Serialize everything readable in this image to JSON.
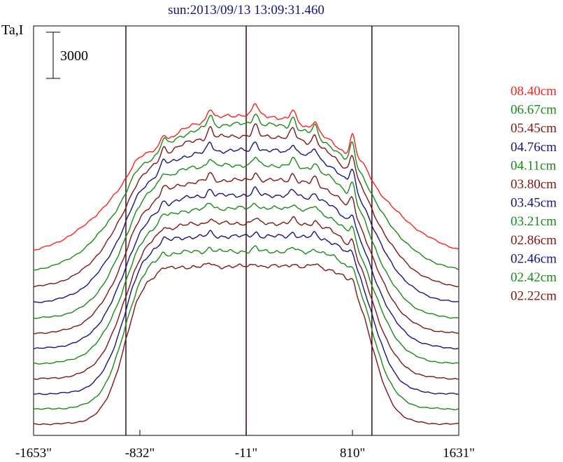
{
  "chart_data": {
    "type": "line",
    "title": "sun:2013/09/13 13:09:31.460",
    "ylabel": "Ta,I",
    "scale_bar_label": "3000",
    "x_ticks": [
      -1653,
      -832,
      -11,
      810,
      1631
    ],
    "x_tick_labels": [
      "-1653\"",
      "-832\"",
      "-11\"",
      "810\"",
      "1631\""
    ],
    "xlim": [
      -1653,
      1631
    ],
    "vertical_lines_at": [
      -940,
      -11,
      960
    ],
    "colors": {
      "red": "#ff2020",
      "green": "#178a17",
      "darkred": "#7f1515",
      "blue": "#15157f",
      "frame": "#000000",
      "vline": "#3a0a0a"
    },
    "series": [
      {
        "name": "08.40cm",
        "color": "red",
        "baseline": 3200,
        "height": 4000,
        "limb_bright": 0.95,
        "peak_amp": 1.0,
        "limb_softness": 1.9
      },
      {
        "name": "06.67cm",
        "color": "green",
        "baseline": 2800,
        "height": 4050,
        "limb_bright": 0.75,
        "peak_amp": 0.95,
        "limb_softness": 1.4
      },
      {
        "name": "05.45cm",
        "color": "darkred",
        "baseline": 2400,
        "height": 4100,
        "limb_bright": 0.6,
        "peak_amp": 0.85,
        "limb_softness": 1.15
      },
      {
        "name": "04.76cm",
        "color": "blue",
        "baseline": 2000,
        "height": 4100,
        "limb_bright": 0.5,
        "peak_amp": 0.75,
        "limb_softness": 1.0
      },
      {
        "name": "04.11cm",
        "color": "green",
        "baseline": 1600,
        "height": 4100,
        "limb_bright": 0.45,
        "peak_amp": 0.65,
        "limb_softness": 0.85
      },
      {
        "name": "03.80cm",
        "color": "darkred",
        "baseline": 1200,
        "height": 4100,
        "limb_bright": 0.4,
        "peak_amp": 0.6,
        "limb_softness": 0.8
      },
      {
        "name": "03.45cm",
        "color": "blue",
        "baseline": 800,
        "height": 4100,
        "limb_bright": 0.35,
        "peak_amp": 0.5,
        "limb_softness": 0.75
      },
      {
        "name": "03.21cm",
        "color": "green",
        "baseline": 400,
        "height": 4150,
        "limb_bright": 0.3,
        "peak_amp": 0.45,
        "limb_softness": 0.7
      },
      {
        "name": "02.86cm",
        "color": "darkred",
        "baseline": 0,
        "height": 4150,
        "limb_bright": 0.25,
        "peak_amp": 0.4,
        "limb_softness": 0.6
      },
      {
        "name": "02.46cm",
        "color": "blue",
        "baseline": -400,
        "height": 4200,
        "limb_bright": 0.2,
        "peak_amp": 0.32,
        "limb_softness": 0.5
      },
      {
        "name": "02.42cm",
        "color": "green",
        "baseline": -800,
        "height": 4200,
        "limb_bright": 0.18,
        "peak_amp": 0.3,
        "limb_softness": 0.45
      },
      {
        "name": "02.22cm",
        "color": "darkred",
        "baseline": -1200,
        "height": 4200,
        "limb_bright": 0.15,
        "peak_amp": 0.25,
        "limb_softness": 0.4
      }
    ],
    "active_regions_x": [
      -650,
      -290,
      60,
      350,
      520,
      810
    ],
    "ylim": [
      -1500,
      9400
    ],
    "grid": false,
    "legend_placement": "right"
  }
}
